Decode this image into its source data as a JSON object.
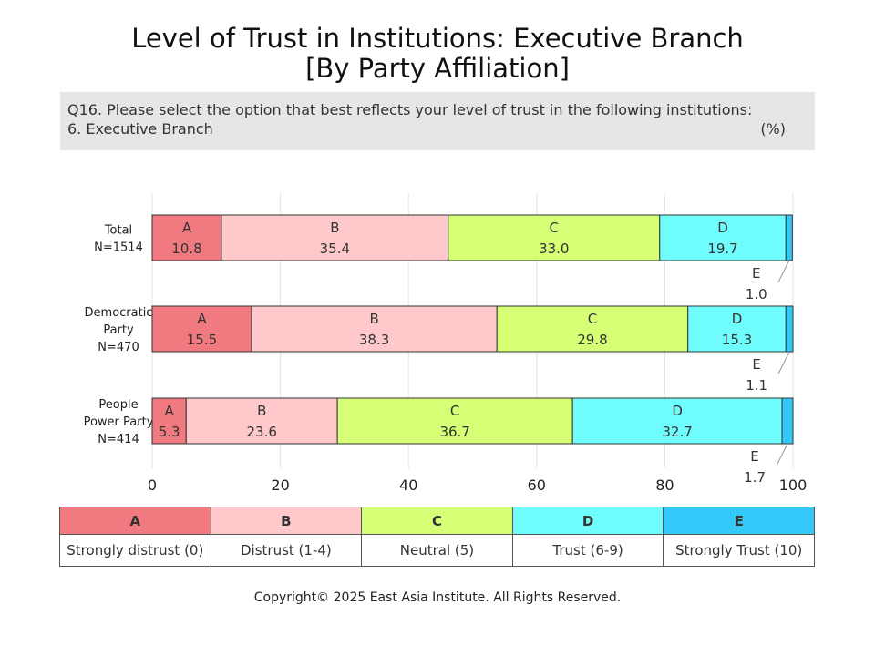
{
  "title_line1": "Level of Trust in Institutions: Executive Branch",
  "title_line2": "[By Party Affiliation]",
  "question_line1": "Q16. Please select the option that best reflects your level of trust in the following institutions:",
  "question_line2": "6. Executive Branch",
  "unit": "(%)",
  "colors": {
    "A": "#f07a80",
    "B": "#ffc9cb",
    "C": "#d6ff75",
    "D": "#6ffcfd",
    "E": "#34c8f8"
  },
  "legend": [
    {
      "key": "A",
      "desc": "Strongly distrust (0)"
    },
    {
      "key": "B",
      "desc": "Distrust (1-4)"
    },
    {
      "key": "C",
      "desc": "Neutral (5)"
    },
    {
      "key": "D",
      "desc": "Trust (6-9)"
    },
    {
      "key": "E",
      "desc": "Strongly Trust (10)"
    }
  ],
  "copyright": "Copyright© 2025 East Asia Institute. All Rights Reserved.",
  "chart_data": {
    "type": "bar",
    "orientation": "horizontal",
    "stacked": true,
    "xlim": [
      0,
      100
    ],
    "xticks": [
      0,
      20,
      40,
      60,
      80,
      100
    ],
    "grid": true,
    "categories": [
      {
        "lines": [
          "Total",
          "N=1514"
        ]
      },
      {
        "lines": [
          "Democratic",
          "Party",
          "N=470"
        ]
      },
      {
        "lines": [
          "People",
          "Power Party",
          "N=414"
        ]
      }
    ],
    "series": [
      {
        "name": "A",
        "values": [
          10.8,
          15.5,
          5.3
        ]
      },
      {
        "name": "B",
        "values": [
          35.4,
          38.3,
          23.6
        ]
      },
      {
        "name": "C",
        "values": [
          33.0,
          29.8,
          36.7
        ]
      },
      {
        "name": "D",
        "values": [
          19.7,
          15.3,
          32.7
        ]
      },
      {
        "name": "E",
        "values": [
          1.0,
          1.1,
          1.7
        ]
      }
    ]
  }
}
